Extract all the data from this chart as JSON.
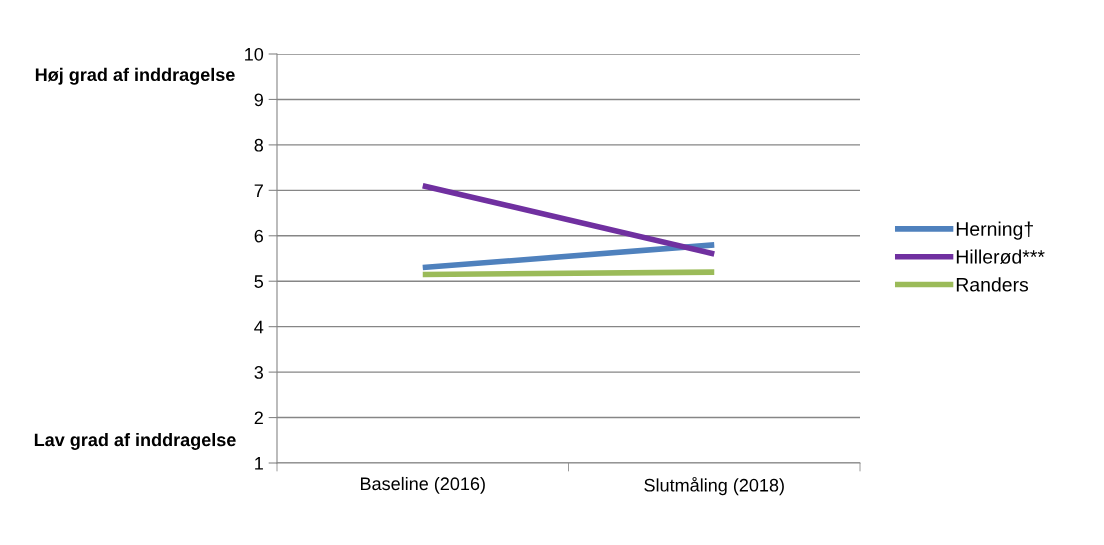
{
  "chart_data": {
    "type": "line",
    "categories": [
      "Baseline (2016)",
      "Slutmåling (2018)"
    ],
    "series": [
      {
        "name": "Herning†",
        "color": "#4f81bd",
        "values": [
          5.3,
          5.8
        ]
      },
      {
        "name": "Hillerød***",
        "color": "#7030a0",
        "values": [
          7.1,
          5.6
        ]
      },
      {
        "name": "Randers",
        "color": "#9bbb59",
        "values": [
          5.15,
          5.2
        ]
      }
    ],
    "ylim": [
      1,
      10
    ],
    "yticks": [
      1,
      2,
      3,
      4,
      5,
      6,
      7,
      8,
      9,
      10
    ],
    "grid": "y",
    "legend": "right",
    "marker": "none",
    "line_style": "solid",
    "annotations": [
      "Høj grad af inddragelse",
      "Lav grad af inddragelse"
    ]
  }
}
